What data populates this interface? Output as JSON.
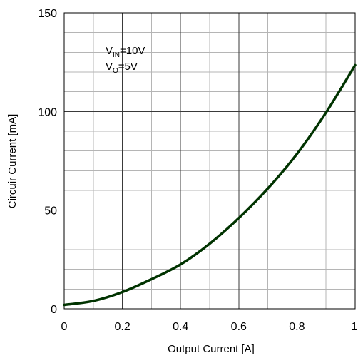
{
  "chart_data": {
    "type": "line",
    "xlabel": "Output Current [A]",
    "ylabel": "Circuir Current [mA]",
    "xlim": [
      0,
      1
    ],
    "ylim": [
      0,
      150
    ],
    "x_ticks": [
      "0",
      "0.2",
      "0.4",
      "0.6",
      "0.8",
      "1"
    ],
    "y_ticks": [
      "0",
      "50",
      "100",
      "150"
    ],
    "x_tick_values": [
      0,
      0.2,
      0.4,
      0.6,
      0.8,
      1
    ],
    "y_tick_values": [
      0,
      50,
      100,
      150
    ],
    "x_minor_step": 0.1,
    "y_minor_step": 10,
    "grid": true,
    "line_color": "#003300",
    "annotation": {
      "line1_main": "V",
      "line1_sub": "IN",
      "line1_rest": "=10V",
      "line2_main": "V",
      "line2_sub": "O",
      "line2_rest": "=5V"
    },
    "series": [
      {
        "x": [
          0,
          0.1,
          0.2,
          0.3,
          0.4,
          0.5,
          0.6,
          0.7,
          0.8,
          0.9,
          1.0
        ],
        "values": [
          2,
          4,
          8.5,
          15,
          22.5,
          33,
          46,
          61,
          78.5,
          99.5,
          123.5
        ]
      }
    ]
  }
}
